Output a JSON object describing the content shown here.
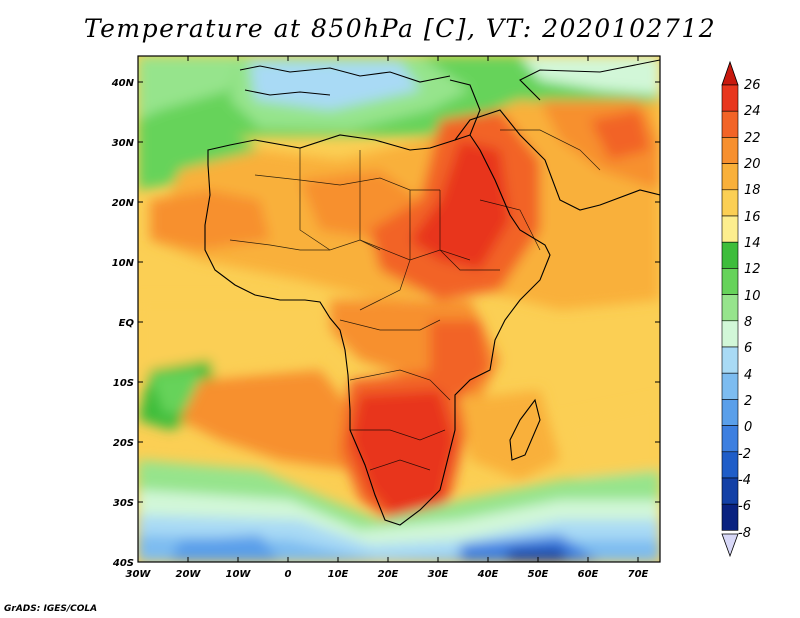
{
  "title": "Temperature at 850hPa [C], VT: 2020102712",
  "credit": "GrADS: IGES/COLA",
  "lat_labels": [
    "40N",
    "30N",
    "20N",
    "10N",
    "EQ",
    "10S",
    "20S",
    "30S",
    "40S"
  ],
  "lon_labels": [
    "30W",
    "20W",
    "10W",
    "0",
    "10E",
    "20E",
    "30E",
    "40E",
    "50E",
    "60E",
    "70E"
  ],
  "extent": {
    "lon_min": -30,
    "lon_max": 75,
    "lat_min": -40,
    "lat_max": 45
  },
  "colorbar": {
    "labels": [
      "26",
      "24",
      "22",
      "20",
      "18",
      "16",
      "14",
      "12",
      "10",
      "8",
      "6",
      "4",
      "2",
      "0",
      "-2",
      "-4",
      "-6",
      "-8"
    ],
    "colors": [
      "#e8361e",
      "#f26427",
      "#f7902f",
      "#f9b03a",
      "#fbcf54",
      "#fdee8e",
      "#3dbd3b",
      "#66d35a",
      "#96e48c",
      "#d2f7d8",
      "#a9daf5",
      "#7dbcf0",
      "#5a9fea",
      "#3d7fe0",
      "#1f5dc8",
      "#1340a6",
      "#0a2280"
    ],
    "top_arrow_color": "#c8190e",
    "bottom_arrow_color": "#d8d8f8"
  }
}
